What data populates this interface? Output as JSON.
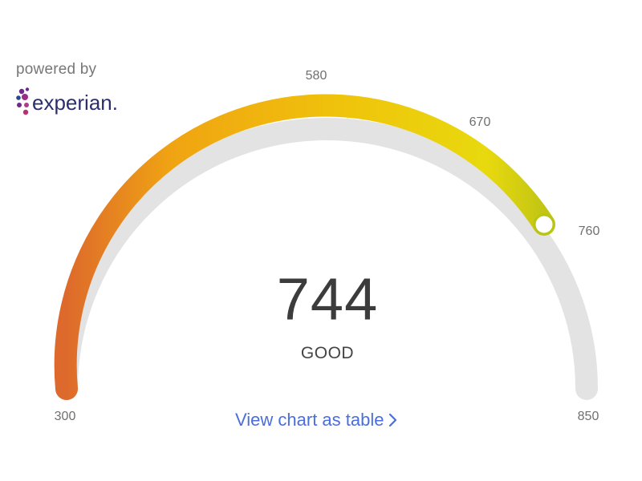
{
  "branding": {
    "powered_by": "powered by",
    "logo_text": "experian."
  },
  "gauge": {
    "score": "744",
    "rating": "GOOD",
    "min_label": "300",
    "max_label": "850",
    "ticks": [
      "580",
      "670",
      "760"
    ],
    "min": 300,
    "max": 850,
    "value": 744,
    "colors": {
      "low": "#dd6a2c",
      "mid": "#f0b413",
      "high": "#ecd20a",
      "marker_zone": "#c6c715",
      "track": "#e3e3e3"
    }
  },
  "actions": {
    "view_table": "View chart as table"
  }
}
